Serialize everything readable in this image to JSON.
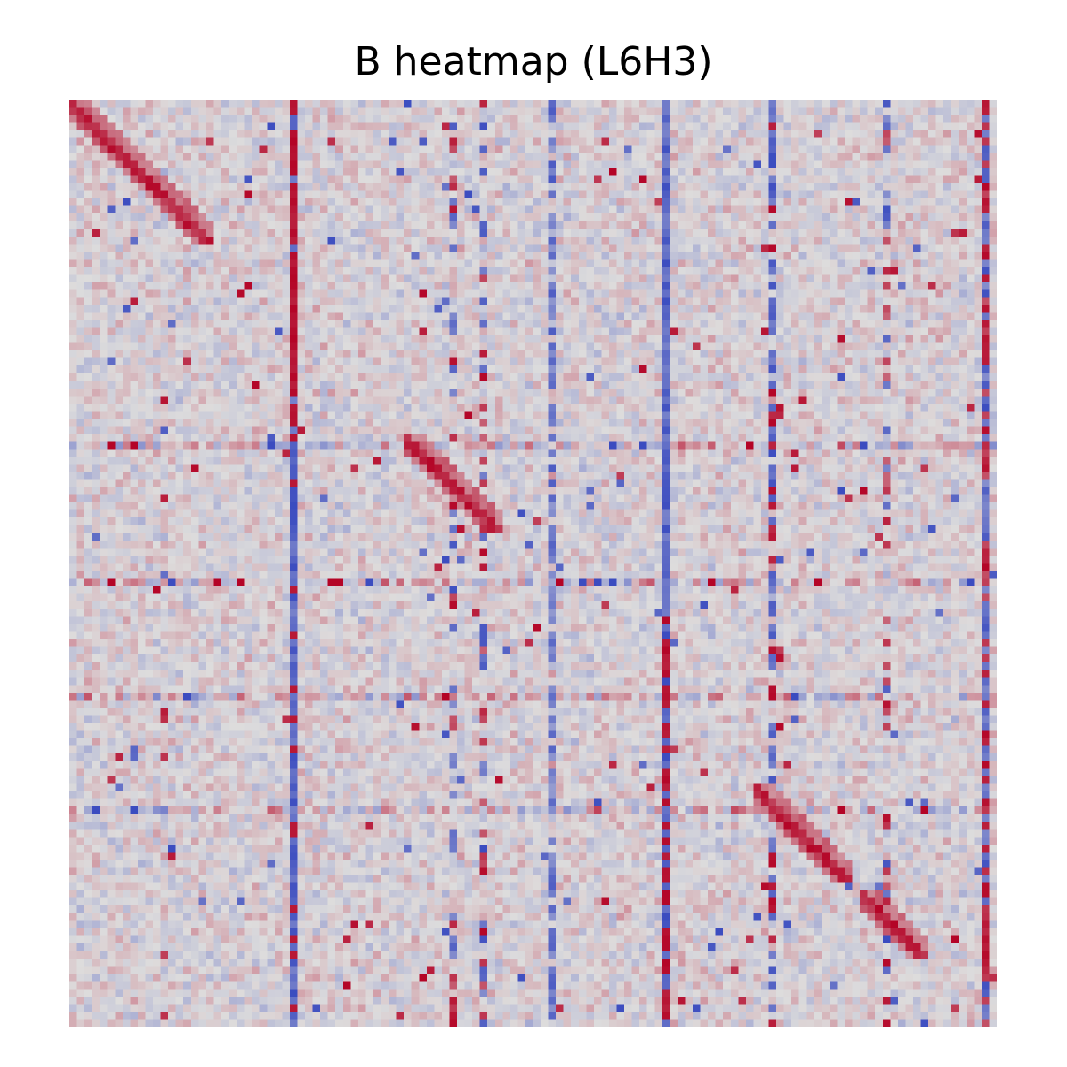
{
  "chart_data": {
    "type": "heatmap",
    "title": "B heatmap (L6H3)",
    "rows": 122,
    "cols": 122,
    "colormap": "coolwarm",
    "axes_visible": false,
    "colorbar": false,
    "hot_columns": [
      {
        "col": 29,
        "note": "mostly red in upper half, blue in lower half"
      },
      {
        "col": 63,
        "note": "mostly blue"
      },
      {
        "col": 78,
        "note": "blue in upper half, red in lower half"
      },
      {
        "col": 92,
        "note": "mixed blue/red"
      },
      {
        "col": 120,
        "note": "mixed red/blue"
      }
    ],
    "hot_rows": [
      45,
      63,
      78,
      93
    ],
    "diagonal_blocks": [
      {
        "start": 0,
        "end": 18
      },
      {
        "start": 44,
        "end": 56
      },
      {
        "start": 90,
        "end": 102
      },
      {
        "start": 104,
        "end": 112
      }
    ]
  },
  "colors": {
    "red": "#b40426",
    "blue": "#3b4cc0",
    "neutral": "#dddcdc"
  }
}
